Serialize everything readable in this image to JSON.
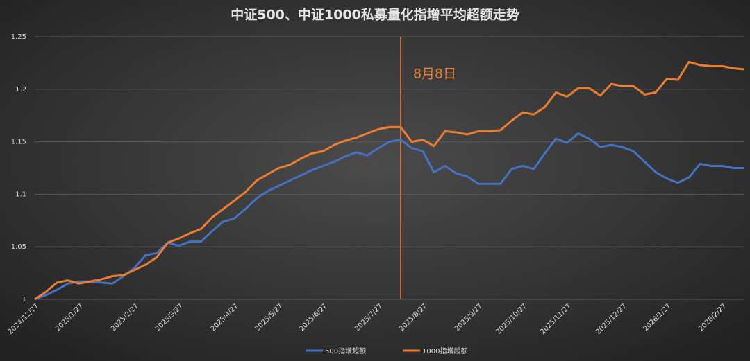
{
  "chart_data": {
    "type": "line",
    "title": "中证500、中证1000私募量化指增平均超额走势",
    "categories": [
      "2024/12/27",
      null,
      null,
      null,
      "2025/1/27",
      null,
      null,
      null,
      null,
      "2025/2/27",
      null,
      null,
      null,
      "2025/3/27",
      null,
      null,
      null,
      null,
      "2025/4/27",
      null,
      null,
      null,
      "2025/5/27",
      null,
      null,
      null,
      "2025/6/27",
      null,
      null,
      null,
      null,
      "2025/7/27",
      null,
      null,
      null,
      "2025/8/27",
      null,
      null,
      null,
      null,
      "2025/9/27",
      null,
      null,
      null,
      "2025/10/27",
      null,
      null,
      null,
      "2025/11/27",
      null,
      null,
      null,
      null,
      "2025/12/27",
      null,
      null,
      null,
      "2026/1/27",
      null,
      null,
      null,
      null,
      "2026/2/27",
      null,
      null
    ],
    "series": [
      {
        "name": "500指增超额",
        "color": "#4472c4",
        "values": [
          1.0,
          1.004,
          1.009,
          1.015,
          1.017,
          1.017,
          1.016,
          1.015,
          1.022,
          1.03,
          1.042,
          1.044,
          1.054,
          1.051,
          1.055,
          1.055,
          1.065,
          1.074,
          1.077,
          1.086,
          1.096,
          1.103,
          1.108,
          1.113,
          1.118,
          1.123,
          1.127,
          1.131,
          1.136,
          1.14,
          1.137,
          1.144,
          1.15,
          1.152,
          1.144,
          1.141,
          1.121,
          1.127,
          1.12,
          1.117,
          1.11,
          1.11,
          1.11,
          1.124,
          1.127,
          1.124,
          1.139,
          1.153,
          1.149,
          1.158,
          1.153,
          1.145,
          1.147,
          1.145,
          1.141,
          1.131,
          1.121,
          1.115,
          1.111,
          1.116,
          1.129,
          1.127,
          1.127,
          1.125,
          1.125
        ]
      },
      {
        "name": "1000指增超额",
        "color": "#ed7d31",
        "values": [
          1.0,
          1.007,
          1.016,
          1.018,
          1.015,
          1.017,
          1.019,
          1.022,
          1.023,
          1.028,
          1.033,
          1.04,
          1.054,
          1.058,
          1.063,
          1.067,
          1.078,
          1.086,
          1.094,
          1.102,
          1.113,
          1.119,
          1.125,
          1.128,
          1.134,
          1.139,
          1.141,
          1.147,
          1.151,
          1.154,
          1.158,
          1.162,
          1.164,
          1.164,
          1.15,
          1.152,
          1.146,
          1.16,
          1.159,
          1.157,
          1.16,
          1.16,
          1.161,
          1.17,
          1.178,
          1.176,
          1.183,
          1.197,
          1.193,
          1.201,
          1.201,
          1.194,
          1.205,
          1.203,
          1.203,
          1.195,
          1.197,
          1.21,
          1.209,
          1.226,
          1.223,
          1.222,
          1.222,
          1.22,
          1.219
        ]
      }
    ],
    "vline": {
      "x": 33,
      "label": "8月8日",
      "color": "#ed7d31"
    },
    "ylim": [
      1,
      1.25
    ],
    "yticks": [
      1,
      1.05,
      1.1,
      1.15,
      1.2,
      1.25
    ],
    "grid": true,
    "legend": "bottom"
  }
}
